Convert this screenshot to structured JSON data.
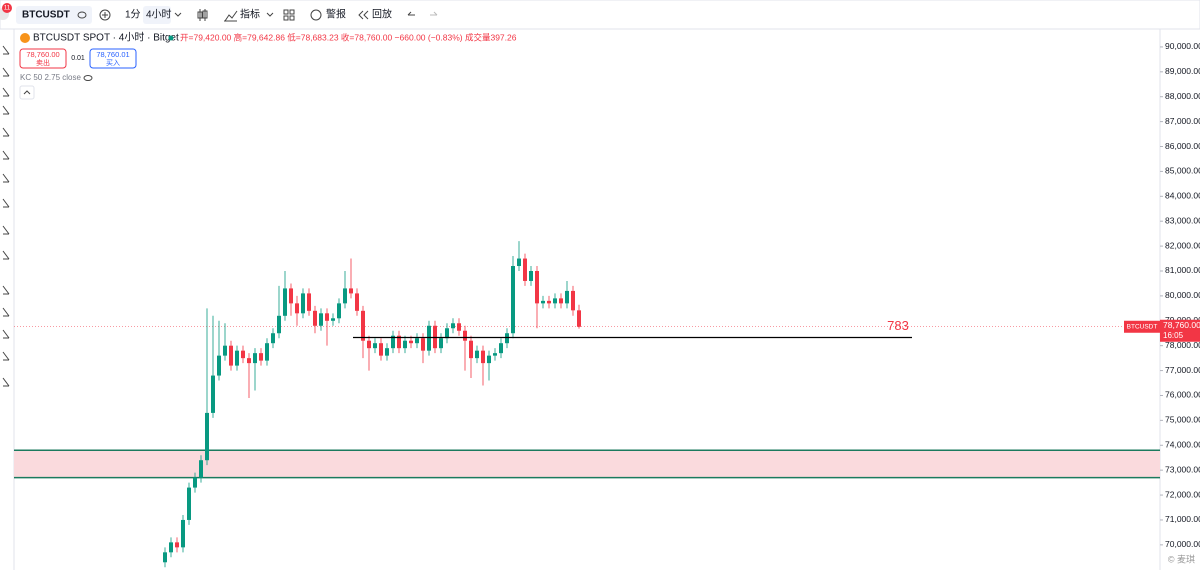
{
  "toolbar": {
    "symbol": "BTCUSDT",
    "interval_1": "1分",
    "interval_2": "4小时",
    "indicators": "指标",
    "alert": "警报",
    "replay": "回放",
    "badge": "11"
  },
  "legend": {
    "title": "BTCUSDT SPOT · 4小时 · Bitget",
    "ohlc": "开=79,420.00 高=79,642.86 低=78,683.23 收=78,760.00 −660.00 (−0.83%) 成交量397.26",
    "sell_price": "78,760.00",
    "sell": "卖出",
    "qty": "0.01",
    "buy_price": "78,760.01",
    "buy": "买入",
    "indicator": "KC 50 2.75 close"
  },
  "watermark": "© 麦琪",
  "chart_data": {
    "type": "candlestick",
    "up_color": "#089981",
    "down_color": "#f23645",
    "candles": [
      [
        69300,
        69900,
        69100,
        69700
      ],
      [
        69700,
        70300,
        69500,
        70100
      ],
      [
        70100,
        70300,
        69700,
        69900
      ],
      [
        69900,
        71200,
        69700,
        71000
      ],
      [
        71000,
        72500,
        70800,
        72300
      ],
      [
        72300,
        72900,
        72100,
        72700
      ],
      [
        72700,
        73600,
        72500,
        73400
      ],
      [
        73400,
        79500,
        73200,
        75300
      ],
      [
        75300,
        79200,
        75100,
        76800
      ],
      [
        76800,
        79000,
        76600,
        77600
      ],
      [
        77600,
        78900,
        77400,
        78000
      ],
      [
        78000,
        78200,
        77000,
        77200
      ],
      [
        77200,
        78000,
        77000,
        77800
      ],
      [
        77800,
        78000,
        77300,
        77500
      ],
      [
        77500,
        77700,
        75900,
        77300
      ],
      [
        77300,
        77900,
        76200,
        77700
      ],
      [
        77700,
        77900,
        77200,
        77400
      ],
      [
        77400,
        78300,
        77200,
        78100
      ],
      [
        78100,
        78700,
        77900,
        78500
      ],
      [
        78500,
        80400,
        78300,
        79200
      ],
      [
        79200,
        81000,
        79000,
        80300
      ],
      [
        80300,
        80500,
        79200,
        79700
      ],
      [
        79700,
        80000,
        78800,
        79300
      ],
      [
        79300,
        80300,
        79100,
        80100
      ],
      [
        80100,
        80300,
        79200,
        79400
      ],
      [
        79400,
        79600,
        78500,
        78800
      ],
      [
        78800,
        79500,
        78600,
        79300
      ],
      [
        79300,
        79500,
        78000,
        79000
      ],
      [
        79000,
        79300,
        78800,
        79100
      ],
      [
        79100,
        79900,
        78900,
        79700
      ],
      [
        79700,
        81000,
        79500,
        80300
      ],
      [
        80300,
        81500,
        79900,
        80100
      ],
      [
        80100,
        80300,
        79200,
        79400
      ],
      [
        79400,
        79600,
        77500,
        78200
      ],
      [
        78200,
        78400,
        77000,
        77900
      ],
      [
        77900,
        78300,
        77700,
        78100
      ],
      [
        78100,
        78300,
        77400,
        77600
      ],
      [
        77600,
        78100,
        77400,
        77900
      ],
      [
        77900,
        78600,
        77700,
        78400
      ],
      [
        78400,
        78600,
        77700,
        77900
      ],
      [
        77900,
        78400,
        77700,
        78200
      ],
      [
        78200,
        78400,
        77900,
        78100
      ],
      [
        78100,
        78500,
        77900,
        78300
      ],
      [
        78300,
        78500,
        77300,
        77800
      ],
      [
        77800,
        79000,
        77600,
        78800
      ],
      [
        78800,
        79000,
        77700,
        77900
      ],
      [
        77900,
        78500,
        77700,
        78300
      ],
      [
        78300,
        78900,
        78100,
        78700
      ],
      [
        78700,
        79100,
        78500,
        78900
      ],
      [
        78900,
        79100,
        78400,
        78600
      ],
      [
        78600,
        78800,
        77000,
        78200
      ],
      [
        78200,
        78400,
        76700,
        77500
      ],
      [
        77500,
        78000,
        77300,
        77800
      ],
      [
        77800,
        78000,
        76400,
        77300
      ],
      [
        77300,
        77800,
        76600,
        77600
      ],
      [
        77600,
        77900,
        77400,
        77700
      ],
      [
        77700,
        78300,
        77500,
        78100
      ],
      [
        78100,
        78700,
        77900,
        78500
      ],
      [
        78500,
        81600,
        78300,
        81200
      ],
      [
        81200,
        82200,
        81000,
        81500
      ],
      [
        81500,
        81700,
        80400,
        80600
      ],
      [
        80600,
        81200,
        80400,
        81000
      ],
      [
        81000,
        81200,
        78700,
        79700
      ],
      [
        79700,
        80000,
        79500,
        79800
      ],
      [
        79800,
        80000,
        79500,
        79700
      ],
      [
        79700,
        80100,
        79500,
        79900
      ],
      [
        79900,
        80100,
        79500,
        79700
      ],
      [
        79700,
        80600,
        79500,
        80200
      ],
      [
        80200,
        80400,
        79200,
        79420
      ],
      [
        79420,
        79642.86,
        78683.23,
        78760
      ]
    ],
    "ylim": [
      68990,
      90720
    ],
    "yticks": [
      {
        "value": 90000,
        "label": "90,000.00"
      },
      {
        "value": 89000,
        "label": "89,000.00"
      },
      {
        "value": 88000,
        "label": "88,000.00"
      },
      {
        "value": 87000,
        "label": "87,000.00"
      },
      {
        "value": 86000,
        "label": "86,000.00"
      },
      {
        "value": 85000,
        "label": "85,000.00"
      },
      {
        "value": 84000,
        "label": "84,000.00"
      },
      {
        "value": 83000,
        "label": "83,000.00"
      },
      {
        "value": 82000,
        "label": "82,000.00"
      },
      {
        "value": 81000,
        "label": "81,000.00"
      },
      {
        "value": 80000,
        "label": "80,000.00"
      },
      {
        "value": 79000,
        "label": "79,000.00"
      },
      {
        "value": 78000,
        "label": "78,000.00"
      },
      {
        "value": 77000,
        "label": "77,000.00"
      },
      {
        "value": 76000,
        "label": "76,000.00"
      },
      {
        "value": 75000,
        "label": "75,000.00"
      },
      {
        "value": 74000,
        "label": "74,000.00"
      },
      {
        "value": 73000,
        "label": "73,000.00"
      },
      {
        "value": 72000,
        "label": "72,000.00"
      },
      {
        "value": 71000,
        "label": "71,000.00"
      },
      {
        "value": 70000,
        "label": "70,000.00"
      }
    ],
    "zone": [
      73800,
      72700
    ],
    "zone_color": "#fadadd",
    "zone_line_color": "#1b7a5e",
    "hline": 78330,
    "hline_label": "783",
    "last_price": {
      "value": 78760,
      "symbol": "BTCUSDT",
      "label": "78,760.00",
      "countdown": "16:05"
    }
  }
}
